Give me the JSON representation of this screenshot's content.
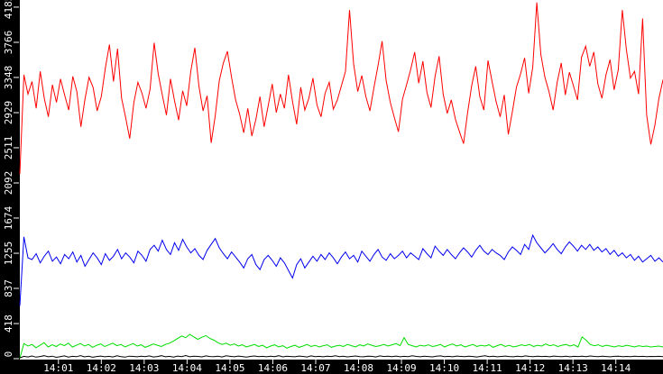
{
  "chart_data": {
    "type": "line",
    "title": "",
    "background_color": "#ffffff",
    "axis_band_color": "#000000",
    "tick_color": "#ffffff",
    "label_color": "#ffffff",
    "grid": "off",
    "legend": "none",
    "x_axis": {
      "xlim": [
        0.1,
        15.1
      ],
      "unit": "time-of-day-minutes-after-14:00",
      "tick_values": [
        1,
        2,
        3,
        4,
        5,
        6,
        7,
        8,
        9,
        10,
        11,
        12,
        13,
        14
      ],
      "tick_labels": [
        "14:01",
        "14:02",
        "14:03",
        "14:04",
        "14:05",
        "14:06",
        "14:07",
        "14:08",
        "14:09",
        "14:10",
        "14:11",
        "14:12",
        "14:13",
        "14:14"
      ]
    },
    "y_axis": {
      "ylim": [
        0,
        4270
      ],
      "tick_values": [
        0,
        418,
        837,
        1255,
        1674,
        2092,
        2511,
        2929,
        3348,
        3766,
        4185
      ],
      "tick_labels": [
        "0",
        "418",
        "837",
        "1255",
        "1674",
        "2092",
        "2511",
        "2929",
        "3348",
        "3766",
        "4185"
      ]
    },
    "series": [
      {
        "name": "red-series",
        "color": "#ff0000",
        "values": [
          2200,
          3380,
          3150,
          3300,
          2980,
          3420,
          3100,
          2880,
          3260,
          3050,
          3330,
          3140,
          2960,
          3360,
          3180,
          2760,
          3090,
          3350,
          3230,
          2950,
          3120,
          3460,
          3740,
          3300,
          3690,
          3100,
          2870,
          2620,
          3050,
          3290,
          3160,
          2980,
          3210,
          3760,
          3390,
          3140,
          2900,
          3330,
          3070,
          2840,
          3190,
          3010,
          3420,
          3700,
          3240,
          2950,
          3130,
          2570,
          2890,
          3310,
          3520,
          3660,
          3350,
          3080,
          2910,
          2690,
          2980,
          2650,
          2850,
          3120,
          2760,
          3010,
          3270,
          2930,
          3150,
          2980,
          3380,
          3060,
          2790,
          3230,
          2960,
          3100,
          3340,
          3020,
          2880,
          3160,
          3290,
          2970,
          3080,
          3250,
          3420,
          4150,
          3510,
          3180,
          3370,
          3120,
          2950,
          3230,
          3490,
          3780,
          3310,
          3050,
          2870,
          2700,
          3090,
          3260,
          3440,
          3650,
          3280,
          3540,
          3170,
          2990,
          3360,
          3600,
          3150,
          2920,
          3080,
          2850,
          2700,
          2560,
          2930,
          3250,
          3480,
          3120,
          2960,
          3550,
          3300,
          3060,
          2880,
          3140,
          2670,
          2940,
          3230,
          3390,
          3580,
          3160,
          3470,
          4240,
          3620,
          3350,
          3180,
          2960,
          3290,
          3520,
          3140,
          3410,
          3250,
          3080,
          3590,
          3720,
          3480,
          3650,
          3270,
          3100,
          3380,
          3560,
          3200,
          3440,
          4150,
          3680,
          3340,
          3420,
          3150,
          4050,
          2900,
          2550,
          2780,
          3100,
          3320
        ]
      },
      {
        "name": "blue-series",
        "color": "#0000ee",
        "values": [
          630,
          1450,
          1200,
          1180,
          1250,
          1140,
          1220,
          1280,
          1160,
          1210,
          1130,
          1240,
          1190,
          1270,
          1150,
          1230,
          1100,
          1180,
          1260,
          1200,
          1120,
          1250,
          1170,
          1220,
          1300,
          1190,
          1260,
          1210,
          1140,
          1280,
          1230,
          1160,
          1300,
          1350,
          1280,
          1410,
          1300,
          1240,
          1380,
          1290,
          1420,
          1330,
          1260,
          1310,
          1230,
          1180,
          1290,
          1360,
          1430,
          1320,
          1250,
          1190,
          1270,
          1210,
          1150,
          1080,
          1190,
          1240,
          1120,
          1060,
          1180,
          1230,
          1170,
          1100,
          1200,
          1140,
          1050,
          960,
          1120,
          1190,
          1080,
          1150,
          1220,
          1160,
          1240,
          1180,
          1260,
          1200,
          1130,
          1210,
          1270,
          1190,
          1230,
          1150,
          1280,
          1220,
          1160,
          1240,
          1300,
          1210,
          1170,
          1250,
          1190,
          1230,
          1280,
          1200,
          1260,
          1220,
          1180,
          1310,
          1250,
          1200,
          1340,
          1280,
          1230,
          1300,
          1240,
          1190,
          1260,
          1320,
          1270,
          1210,
          1290,
          1350,
          1280,
          1240,
          1300,
          1260,
          1230,
          1180,
          1270,
          1330,
          1290,
          1240,
          1360,
          1300,
          1470,
          1380,
          1320,
          1260,
          1310,
          1370,
          1300,
          1250,
          1330,
          1390,
          1340,
          1280,
          1350,
          1300,
          1360,
          1290,
          1330,
          1270,
          1310,
          1240,
          1290,
          1220,
          1260,
          1200,
          1240,
          1170,
          1220,
          1150,
          1190,
          1230,
          1160,
          1200,
          1150
        ]
      },
      {
        "name": "green-series",
        "color": "#00dd00",
        "values": [
          5,
          180,
          150,
          170,
          130,
          160,
          190,
          140,
          165,
          145,
          175,
          155,
          185,
          140,
          160,
          180,
          150,
          170,
          135,
          160,
          175,
          145,
          165,
          185,
          155,
          170,
          140,
          160,
          180,
          150,
          165,
          135,
          155,
          175,
          160,
          145,
          170,
          185,
          210,
          240,
          270,
          250,
          290,
          260,
          230,
          255,
          275,
          240,
          220,
          190,
          170,
          185,
          160,
          175,
          150,
          165,
          140,
          155,
          170,
          145,
          160,
          130,
          150,
          165,
          140,
          155,
          125,
          145,
          160,
          135,
          150,
          170,
          145,
          160,
          140,
          155,
          165,
          135,
          150,
          160,
          145,
          170,
          155,
          140,
          165,
          150,
          175,
          160,
          145,
          155,
          170,
          150,
          165,
          180,
          155,
          250,
          170,
          155,
          140,
          160,
          150,
          165,
          145,
          155,
          170,
          140,
          160,
          175,
          150,
          165,
          140,
          155,
          170,
          145,
          160,
          150,
          165,
          135,
          155,
          170,
          145,
          160,
          140,
          150,
          165,
          155,
          170,
          145,
          160,
          150,
          175,
          155,
          165,
          145,
          160,
          170,
          150,
          165,
          140,
          260,
          220,
          170,
          155,
          165,
          145,
          160,
          150,
          140,
          155,
          145,
          160,
          150,
          140,
          155,
          145,
          150,
          140,
          145,
          150,
          140
        ]
      },
      {
        "name": "black-series",
        "color": "#000000",
        "values": [
          10,
          28,
          20,
          32,
          18,
          26,
          35,
          22,
          30,
          16,
          25,
          33,
          19,
          28,
          24,
          36,
          21,
          29,
          17,
          26,
          31,
          23,
          28,
          20,
          34,
          25,
          18,
          30,
          27,
          22,
          29,
          24,
          33,
          20,
          26,
          35,
          23,
          28,
          19,
          31,
          25,
          38,
          22,
          30,
          27,
          21,
          33,
          26,
          24,
          29,
          20,
          34,
          28,
          23,
          31,
          26,
          19,
          27,
          32,
          24,
          28,
          22,
          30,
          25,
          35,
          21,
          29,
          26,
          23,
          31,
          27,
          20,
          33,
          25,
          28,
          22,
          30,
          26,
          34,
          24,
          29,
          21,
          27,
          32,
          25,
          23,
          30,
          28,
          20,
          33,
          26,
          29,
          24,
          31,
          22,
          28,
          25,
          35,
          27,
          23,
          30,
          26,
          21,
          29,
          33,
          25,
          28,
          22,
          31,
          27,
          24,
          30,
          26,
          20,
          28,
          34,
          25,
          29,
          23,
          27,
          31,
          26,
          22,
          29,
          25,
          33,
          27,
          24,
          30,
          26,
          28,
          23,
          31,
          27,
          25,
          29,
          22,
          28,
          26,
          30,
          24,
          32,
          27,
          25,
          29,
          26,
          23,
          28,
          30,
          25,
          27,
          24,
          29,
          26,
          28,
          25,
          27,
          26,
          28,
          25
        ]
      }
    ]
  }
}
